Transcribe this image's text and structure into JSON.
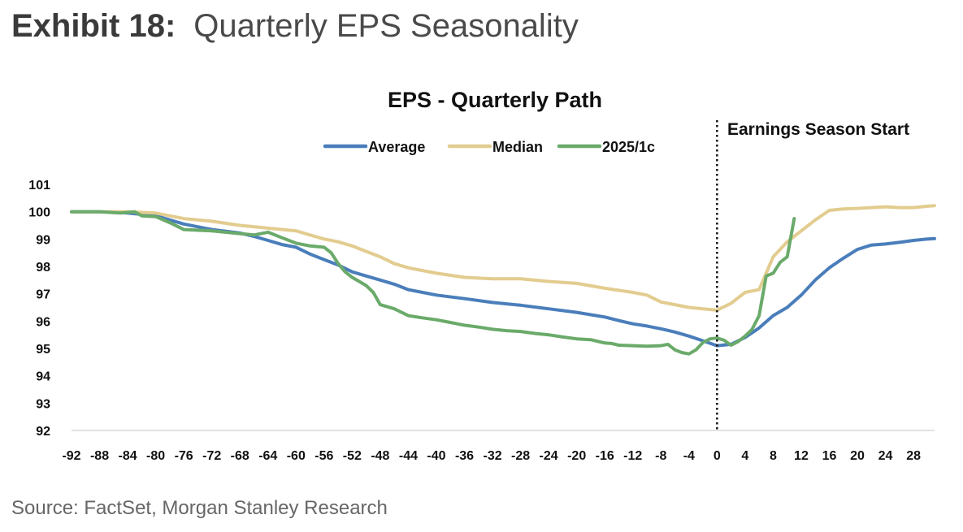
{
  "header": {
    "exhibit_label": "Exhibit 18:",
    "exhibit_title": "Quarterly EPS Seasonality"
  },
  "source": "Source: FactSet, Morgan Stanley Research",
  "chart_data": {
    "type": "line",
    "title": "EPS - Quarterly Path",
    "xlabel": "",
    "ylabel": "",
    "xlim": [
      -92,
      31
    ],
    "ylim": [
      92,
      101
    ],
    "x_ticks": [
      -92,
      -88,
      -84,
      -80,
      -76,
      -72,
      -68,
      -64,
      -60,
      -56,
      -52,
      -48,
      -44,
      -40,
      -36,
      -32,
      -28,
      -24,
      -20,
      -16,
      -12,
      -8,
      -4,
      0,
      4,
      8,
      12,
      16,
      20,
      24,
      28
    ],
    "y_ticks": [
      92,
      93,
      94,
      95,
      96,
      97,
      98,
      99,
      100,
      101
    ],
    "grid": false,
    "legend": "top",
    "annotation": {
      "x": 0,
      "text": "Earnings Season Start"
    },
    "series": [
      {
        "name": "Average",
        "color": "#4a7ebb",
        "points": [
          [
            -92,
            100
          ],
          [
            -88,
            100
          ],
          [
            -84,
            99.95
          ],
          [
            -80,
            99.85
          ],
          [
            -76,
            99.55
          ],
          [
            -72,
            99.35
          ],
          [
            -68,
            99.22
          ],
          [
            -66,
            99.1
          ],
          [
            -64,
            98.95
          ],
          [
            -62,
            98.8
          ],
          [
            -60,
            98.7
          ],
          [
            -58,
            98.45
          ],
          [
            -56,
            98.25
          ],
          [
            -54,
            98.05
          ],
          [
            -52,
            97.8
          ],
          [
            -50,
            97.65
          ],
          [
            -48,
            97.5
          ],
          [
            -46,
            97.35
          ],
          [
            -44,
            97.15
          ],
          [
            -40,
            96.95
          ],
          [
            -36,
            96.82
          ],
          [
            -32,
            96.68
          ],
          [
            -28,
            96.58
          ],
          [
            -24,
            96.45
          ],
          [
            -20,
            96.32
          ],
          [
            -16,
            96.15
          ],
          [
            -14,
            96.02
          ],
          [
            -12,
            95.9
          ],
          [
            -10,
            95.82
          ],
          [
            -8,
            95.72
          ],
          [
            -6,
            95.6
          ],
          [
            -4,
            95.45
          ],
          [
            -2,
            95.28
          ],
          [
            0,
            95.1
          ],
          [
            2,
            95.15
          ],
          [
            4,
            95.4
          ],
          [
            6,
            95.75
          ],
          [
            8,
            96.2
          ],
          [
            10,
            96.5
          ],
          [
            12,
            96.95
          ],
          [
            14,
            97.5
          ],
          [
            16,
            97.95
          ],
          [
            18,
            98.3
          ],
          [
            20,
            98.62
          ],
          [
            22,
            98.78
          ],
          [
            24,
            98.82
          ],
          [
            26,
            98.88
          ],
          [
            28,
            98.95
          ],
          [
            30,
            99.0
          ],
          [
            31,
            99.02
          ]
        ]
      },
      {
        "name": "Median",
        "color": "#e2cc8f",
        "points": [
          [
            -92,
            100
          ],
          [
            -88,
            100
          ],
          [
            -84,
            100
          ],
          [
            -80,
            99.95
          ],
          [
            -76,
            99.75
          ],
          [
            -72,
            99.65
          ],
          [
            -68,
            99.5
          ],
          [
            -64,
            99.4
          ],
          [
            -60,
            99.3
          ],
          [
            -58,
            99.15
          ],
          [
            -56,
            99.0
          ],
          [
            -54,
            98.9
          ],
          [
            -52,
            98.75
          ],
          [
            -50,
            98.55
          ],
          [
            -48,
            98.35
          ],
          [
            -46,
            98.1
          ],
          [
            -44,
            97.95
          ],
          [
            -40,
            97.75
          ],
          [
            -36,
            97.6
          ],
          [
            -32,
            97.55
          ],
          [
            -28,
            97.55
          ],
          [
            -24,
            97.45
          ],
          [
            -20,
            97.38
          ],
          [
            -16,
            97.2
          ],
          [
            -12,
            97.05
          ],
          [
            -10,
            96.95
          ],
          [
            -8,
            96.7
          ],
          [
            -6,
            96.6
          ],
          [
            -4,
            96.5
          ],
          [
            -2,
            96.45
          ],
          [
            0,
            96.4
          ],
          [
            2,
            96.65
          ],
          [
            4,
            97.05
          ],
          [
            6,
            97.15
          ],
          [
            8,
            98.35
          ],
          [
            10,
            98.9
          ],
          [
            12,
            99.3
          ],
          [
            14,
            99.7
          ],
          [
            16,
            100.05
          ],
          [
            18,
            100.1
          ],
          [
            20,
            100.12
          ],
          [
            22,
            100.15
          ],
          [
            24,
            100.18
          ],
          [
            26,
            100.15
          ],
          [
            28,
            100.15
          ],
          [
            30,
            100.2
          ],
          [
            31,
            100.22
          ]
        ]
      },
      {
        "name": "2025/1c",
        "color": "#6aaa6a",
        "points": [
          [
            -92,
            100
          ],
          [
            -88,
            100
          ],
          [
            -85,
            99.95
          ],
          [
            -83,
            100
          ],
          [
            -82,
            99.85
          ],
          [
            -80,
            99.82
          ],
          [
            -78,
            99.6
          ],
          [
            -76,
            99.35
          ],
          [
            -72,
            99.3
          ],
          [
            -68,
            99.2
          ],
          [
            -66,
            99.15
          ],
          [
            -64,
            99.25
          ],
          [
            -62,
            99.05
          ],
          [
            -60,
            98.85
          ],
          [
            -58,
            98.75
          ],
          [
            -56,
            98.7
          ],
          [
            -55,
            98.5
          ],
          [
            -54,
            98.1
          ],
          [
            -53,
            97.8
          ],
          [
            -52,
            97.6
          ],
          [
            -51,
            97.45
          ],
          [
            -50,
            97.3
          ],
          [
            -49,
            97.05
          ],
          [
            -48,
            96.6
          ],
          [
            -46,
            96.45
          ],
          [
            -44,
            96.2
          ],
          [
            -42,
            96.12
          ],
          [
            -40,
            96.05
          ],
          [
            -38,
            95.95
          ],
          [
            -36,
            95.85
          ],
          [
            -34,
            95.78
          ],
          [
            -32,
            95.7
          ],
          [
            -30,
            95.65
          ],
          [
            -28,
            95.62
          ],
          [
            -26,
            95.55
          ],
          [
            -24,
            95.5
          ],
          [
            -22,
            95.42
          ],
          [
            -20,
            95.35
          ],
          [
            -18,
            95.32
          ],
          [
            -16,
            95.2
          ],
          [
            -15,
            95.18
          ],
          [
            -14,
            95.12
          ],
          [
            -12,
            95.1
          ],
          [
            -10,
            95.08
          ],
          [
            -8,
            95.1
          ],
          [
            -7,
            95.15
          ],
          [
            -6,
            94.95
          ],
          [
            -5,
            94.85
          ],
          [
            -4,
            94.8
          ],
          [
            -3,
            94.95
          ],
          [
            -2,
            95.22
          ],
          [
            -1,
            95.35
          ],
          [
            0,
            95.38
          ],
          [
            1,
            95.3
          ],
          [
            2,
            95.12
          ],
          [
            3,
            95.25
          ],
          [
            4,
            95.45
          ],
          [
            5,
            95.7
          ],
          [
            6,
            96.2
          ],
          [
            7,
            97.65
          ],
          [
            8,
            97.75
          ],
          [
            9,
            98.15
          ],
          [
            10,
            98.35
          ],
          [
            11,
            99.75
          ]
        ]
      }
    ]
  }
}
